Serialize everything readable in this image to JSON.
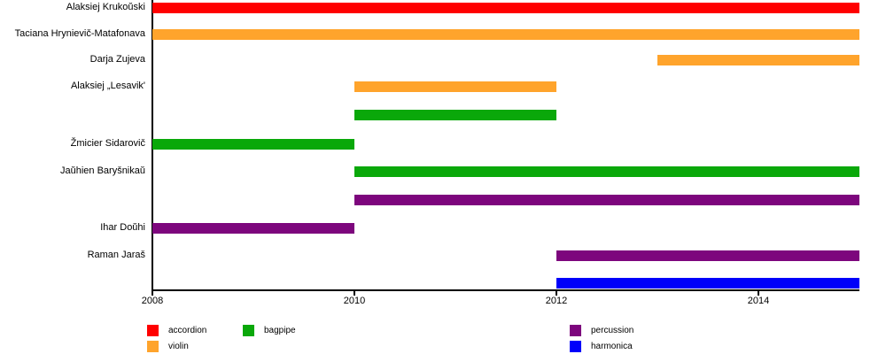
{
  "chart_data": {
    "type": "gantt",
    "title": "",
    "x_axis": {
      "range": [
        2008,
        2015
      ],
      "tick_years": [
        2008,
        2010,
        2012,
        2014
      ],
      "tick_labels": [
        "2008",
        "2010",
        "2012",
        "2014"
      ]
    },
    "legend_position": "bottom",
    "legend": [
      {
        "label": "accordion",
        "color": "#ff0000"
      },
      {
        "label": "violin",
        "color": "#ffa42c"
      },
      {
        "label": "bagpipe",
        "color": "#0aa80a"
      },
      {
        "label": "percussion",
        "color": "#7d067d"
      },
      {
        "label": "harmonica",
        "color": "#0000fa"
      }
    ],
    "rows": [
      {
        "member": "Alaksiej Krukoŭski",
        "instrument": "accordion",
        "start": 2008,
        "end": 2015
      },
      {
        "member": "Taciana Hrynievič-Matafonava",
        "instrument": "violin",
        "start": 2008,
        "end": 2015
      },
      {
        "member": "Darja Zujeva",
        "instrument": "violin",
        "start": 2013,
        "end": 2015
      },
      {
        "member": "Alaksiej „Lesavik'",
        "instrument": "violin",
        "start": 2010,
        "end": 2012
      },
      {
        "member": "",
        "instrument": "bagpipe",
        "start": 2010,
        "end": 2012
      },
      {
        "member": "Žmicier Sidarovič",
        "instrument": "bagpipe",
        "start": 2008,
        "end": 2010
      },
      {
        "member": "Jaŭhien Baryšnikaŭ",
        "instrument": "bagpipe",
        "start": 2010,
        "end": 2015
      },
      {
        "member": "",
        "instrument": "percussion",
        "start": 2010,
        "end": 2015
      },
      {
        "member": "Ihar Doŭhi",
        "instrument": "percussion",
        "start": 2008,
        "end": 2010
      },
      {
        "member": "Raman Jaraš",
        "instrument": "percussion",
        "start": 2012,
        "end": 2015
      },
      {
        "member": "",
        "instrument": "harmonica",
        "start": 2012,
        "end": 2015
      }
    ]
  }
}
